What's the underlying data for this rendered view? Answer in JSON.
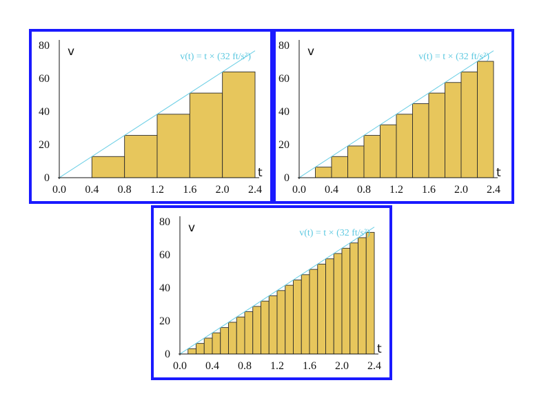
{
  "colors": {
    "frame": "#1a1aff",
    "bar": "#e7c65c",
    "bar_edge": "#2b2b2b",
    "line": "#6fd0e6",
    "formula": "#5cc8e0"
  },
  "chart_data": [
    {
      "type": "bar",
      "formula": "v(t) = t × (32 ft/s²)",
      "xlabel": "t",
      "ylabel": "v",
      "xlim": [
        0,
        2.4
      ],
      "ylim": [
        0,
        80
      ],
      "x_ticks": [
        "0.0",
        "0.4",
        "0.8",
        "1.2",
        "1.6",
        "2.0",
        "2.4"
      ],
      "y_ticks": [
        "0",
        "20",
        "40",
        "60",
        "80"
      ],
      "line": {
        "x": [
          0,
          2.4
        ],
        "y": [
          0,
          76.8
        ]
      },
      "bar_width": 0.4,
      "bar_starts": [
        0.4,
        0.8,
        1.2,
        1.6,
        2.0
      ],
      "values": [
        12.8,
        25.6,
        38.4,
        51.2,
        64.0
      ]
    },
    {
      "type": "bar",
      "formula": "v(t) = t × (32 ft/s²)",
      "xlabel": "t",
      "ylabel": "v",
      "xlim": [
        0,
        2.4
      ],
      "ylim": [
        0,
        80
      ],
      "x_ticks": [
        "0.0",
        "0.4",
        "0.8",
        "1.2",
        "1.6",
        "2.0",
        "2.4"
      ],
      "y_ticks": [
        "0",
        "20",
        "40",
        "60",
        "80"
      ],
      "line": {
        "x": [
          0,
          2.4
        ],
        "y": [
          0,
          76.8
        ]
      },
      "bar_width": 0.2,
      "bar_starts": [
        0.2,
        0.4,
        0.6,
        0.8,
        1.0,
        1.2,
        1.4,
        1.6,
        1.8,
        2.0,
        2.2
      ],
      "values": [
        6.4,
        12.8,
        19.2,
        25.6,
        32.0,
        38.4,
        44.8,
        51.2,
        57.6,
        64.0,
        70.4
      ]
    },
    {
      "type": "bar",
      "formula": "v(t) = t × (32 ft/s²)",
      "xlabel": "t",
      "ylabel": "v",
      "xlim": [
        0,
        2.4
      ],
      "ylim": [
        0,
        80
      ],
      "x_ticks": [
        "0.0",
        "0.4",
        "0.8",
        "1.2",
        "1.6",
        "2.0",
        "2.4"
      ],
      "y_ticks": [
        "0",
        "20",
        "40",
        "60",
        "80"
      ],
      "line": {
        "x": [
          0,
          2.4
        ],
        "y": [
          0,
          76.8
        ]
      },
      "bar_width": 0.1,
      "bar_starts": [
        0.1,
        0.2,
        0.3,
        0.4,
        0.5,
        0.6,
        0.7,
        0.8,
        0.9,
        1.0,
        1.1,
        1.2,
        1.3,
        1.4,
        1.5,
        1.6,
        1.7,
        1.8,
        1.9,
        2.0,
        2.1,
        2.2,
        2.3
      ],
      "values": [
        3.2,
        6.4,
        9.6,
        12.8,
        16.0,
        19.2,
        22.4,
        25.6,
        28.8,
        32.0,
        35.2,
        38.4,
        41.6,
        44.8,
        48.0,
        51.2,
        54.4,
        57.6,
        60.8,
        64.0,
        67.2,
        70.4,
        73.6
      ]
    }
  ]
}
